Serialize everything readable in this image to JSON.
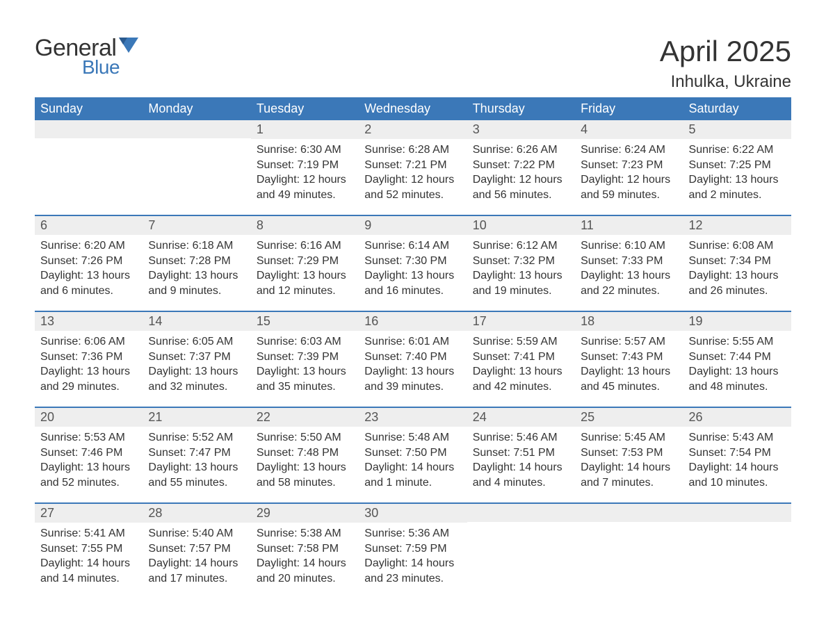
{
  "brand": {
    "word1": "General",
    "word2": "Blue",
    "word1_color": "#333333",
    "word2_color": "#3b78b8",
    "icon_color": "#3b78b8"
  },
  "title": "April 2025",
  "location": "Inhulka, Ukraine",
  "colors": {
    "header_bg": "#3b78b8",
    "header_text": "#ffffff",
    "daynum_bg": "#eeeeee",
    "daynum_text": "#555555",
    "body_text": "#333333",
    "week_border": "#3b78b8",
    "page_bg": "#ffffff"
  },
  "typography": {
    "title_fontsize": 42,
    "location_fontsize": 24,
    "weekday_fontsize": 18,
    "daynum_fontsize": 18,
    "body_fontsize": 16
  },
  "weekdays": [
    "Sunday",
    "Monday",
    "Tuesday",
    "Wednesday",
    "Thursday",
    "Friday",
    "Saturday"
  ],
  "weeks": [
    [
      {
        "day": "",
        "sunrise": "",
        "sunset": "",
        "daylight": ""
      },
      {
        "day": "",
        "sunrise": "",
        "sunset": "",
        "daylight": ""
      },
      {
        "day": "1",
        "sunrise": "Sunrise: 6:30 AM",
        "sunset": "Sunset: 7:19 PM",
        "daylight": "Daylight: 12 hours and 49 minutes."
      },
      {
        "day": "2",
        "sunrise": "Sunrise: 6:28 AM",
        "sunset": "Sunset: 7:21 PM",
        "daylight": "Daylight: 12 hours and 52 minutes."
      },
      {
        "day": "3",
        "sunrise": "Sunrise: 6:26 AM",
        "sunset": "Sunset: 7:22 PM",
        "daylight": "Daylight: 12 hours and 56 minutes."
      },
      {
        "day": "4",
        "sunrise": "Sunrise: 6:24 AM",
        "sunset": "Sunset: 7:23 PM",
        "daylight": "Daylight: 12 hours and 59 minutes."
      },
      {
        "day": "5",
        "sunrise": "Sunrise: 6:22 AM",
        "sunset": "Sunset: 7:25 PM",
        "daylight": "Daylight: 13 hours and 2 minutes."
      }
    ],
    [
      {
        "day": "6",
        "sunrise": "Sunrise: 6:20 AM",
        "sunset": "Sunset: 7:26 PM",
        "daylight": "Daylight: 13 hours and 6 minutes."
      },
      {
        "day": "7",
        "sunrise": "Sunrise: 6:18 AM",
        "sunset": "Sunset: 7:28 PM",
        "daylight": "Daylight: 13 hours and 9 minutes."
      },
      {
        "day": "8",
        "sunrise": "Sunrise: 6:16 AM",
        "sunset": "Sunset: 7:29 PM",
        "daylight": "Daylight: 13 hours and 12 minutes."
      },
      {
        "day": "9",
        "sunrise": "Sunrise: 6:14 AM",
        "sunset": "Sunset: 7:30 PM",
        "daylight": "Daylight: 13 hours and 16 minutes."
      },
      {
        "day": "10",
        "sunrise": "Sunrise: 6:12 AM",
        "sunset": "Sunset: 7:32 PM",
        "daylight": "Daylight: 13 hours and 19 minutes."
      },
      {
        "day": "11",
        "sunrise": "Sunrise: 6:10 AM",
        "sunset": "Sunset: 7:33 PM",
        "daylight": "Daylight: 13 hours and 22 minutes."
      },
      {
        "day": "12",
        "sunrise": "Sunrise: 6:08 AM",
        "sunset": "Sunset: 7:34 PM",
        "daylight": "Daylight: 13 hours and 26 minutes."
      }
    ],
    [
      {
        "day": "13",
        "sunrise": "Sunrise: 6:06 AM",
        "sunset": "Sunset: 7:36 PM",
        "daylight": "Daylight: 13 hours and 29 minutes."
      },
      {
        "day": "14",
        "sunrise": "Sunrise: 6:05 AM",
        "sunset": "Sunset: 7:37 PM",
        "daylight": "Daylight: 13 hours and 32 minutes."
      },
      {
        "day": "15",
        "sunrise": "Sunrise: 6:03 AM",
        "sunset": "Sunset: 7:39 PM",
        "daylight": "Daylight: 13 hours and 35 minutes."
      },
      {
        "day": "16",
        "sunrise": "Sunrise: 6:01 AM",
        "sunset": "Sunset: 7:40 PM",
        "daylight": "Daylight: 13 hours and 39 minutes."
      },
      {
        "day": "17",
        "sunrise": "Sunrise: 5:59 AM",
        "sunset": "Sunset: 7:41 PM",
        "daylight": "Daylight: 13 hours and 42 minutes."
      },
      {
        "day": "18",
        "sunrise": "Sunrise: 5:57 AM",
        "sunset": "Sunset: 7:43 PM",
        "daylight": "Daylight: 13 hours and 45 minutes."
      },
      {
        "day": "19",
        "sunrise": "Sunrise: 5:55 AM",
        "sunset": "Sunset: 7:44 PM",
        "daylight": "Daylight: 13 hours and 48 minutes."
      }
    ],
    [
      {
        "day": "20",
        "sunrise": "Sunrise: 5:53 AM",
        "sunset": "Sunset: 7:46 PM",
        "daylight": "Daylight: 13 hours and 52 minutes."
      },
      {
        "day": "21",
        "sunrise": "Sunrise: 5:52 AM",
        "sunset": "Sunset: 7:47 PM",
        "daylight": "Daylight: 13 hours and 55 minutes."
      },
      {
        "day": "22",
        "sunrise": "Sunrise: 5:50 AM",
        "sunset": "Sunset: 7:48 PM",
        "daylight": "Daylight: 13 hours and 58 minutes."
      },
      {
        "day": "23",
        "sunrise": "Sunrise: 5:48 AM",
        "sunset": "Sunset: 7:50 PM",
        "daylight": "Daylight: 14 hours and 1 minute."
      },
      {
        "day": "24",
        "sunrise": "Sunrise: 5:46 AM",
        "sunset": "Sunset: 7:51 PM",
        "daylight": "Daylight: 14 hours and 4 minutes."
      },
      {
        "day": "25",
        "sunrise": "Sunrise: 5:45 AM",
        "sunset": "Sunset: 7:53 PM",
        "daylight": "Daylight: 14 hours and 7 minutes."
      },
      {
        "day": "26",
        "sunrise": "Sunrise: 5:43 AM",
        "sunset": "Sunset: 7:54 PM",
        "daylight": "Daylight: 14 hours and 10 minutes."
      }
    ],
    [
      {
        "day": "27",
        "sunrise": "Sunrise: 5:41 AM",
        "sunset": "Sunset: 7:55 PM",
        "daylight": "Daylight: 14 hours and 14 minutes."
      },
      {
        "day": "28",
        "sunrise": "Sunrise: 5:40 AM",
        "sunset": "Sunset: 7:57 PM",
        "daylight": "Daylight: 14 hours and 17 minutes."
      },
      {
        "day": "29",
        "sunrise": "Sunrise: 5:38 AM",
        "sunset": "Sunset: 7:58 PM",
        "daylight": "Daylight: 14 hours and 20 minutes."
      },
      {
        "day": "30",
        "sunrise": "Sunrise: 5:36 AM",
        "sunset": "Sunset: 7:59 PM",
        "daylight": "Daylight: 14 hours and 23 minutes."
      },
      {
        "day": "",
        "sunrise": "",
        "sunset": "",
        "daylight": ""
      },
      {
        "day": "",
        "sunrise": "",
        "sunset": "",
        "daylight": ""
      },
      {
        "day": "",
        "sunrise": "",
        "sunset": "",
        "daylight": ""
      }
    ]
  ]
}
